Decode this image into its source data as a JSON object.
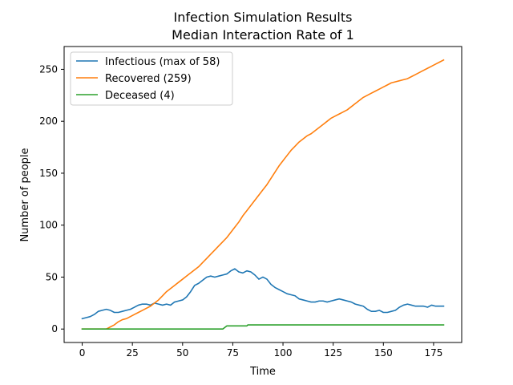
{
  "chart_data": {
    "type": "line",
    "title_lines": [
      "Infection Simulation Results",
      "Median Interaction Rate of 1"
    ],
    "xlabel": "Time",
    "ylabel": "Number of people",
    "xlim": [
      -9,
      189
    ],
    "ylim": [
      -12.95,
      271.95
    ],
    "xticks": [
      0,
      25,
      50,
      75,
      100,
      125,
      150,
      175
    ],
    "yticks": [
      0,
      50,
      100,
      150,
      200,
      250
    ],
    "grid": false,
    "legend_position": "top-left",
    "series": [
      {
        "name": "Infectious (max of 58)",
        "color": "#1f77b4",
        "points": [
          [
            0,
            10
          ],
          [
            2,
            11
          ],
          [
            4,
            12
          ],
          [
            6,
            14
          ],
          [
            8,
            17
          ],
          [
            10,
            18
          ],
          [
            12,
            19
          ],
          [
            14,
            18
          ],
          [
            16,
            16
          ],
          [
            18,
            16
          ],
          [
            20,
            17
          ],
          [
            22,
            18
          ],
          [
            24,
            19
          ],
          [
            26,
            21
          ],
          [
            28,
            23
          ],
          [
            30,
            24
          ],
          [
            32,
            24
          ],
          [
            34,
            23
          ],
          [
            36,
            25
          ],
          [
            38,
            24
          ],
          [
            40,
            23
          ],
          [
            42,
            24
          ],
          [
            44,
            23
          ],
          [
            46,
            26
          ],
          [
            48,
            27
          ],
          [
            50,
            28
          ],
          [
            52,
            31
          ],
          [
            54,
            36
          ],
          [
            56,
            42
          ],
          [
            58,
            44
          ],
          [
            60,
            47
          ],
          [
            62,
            50
          ],
          [
            64,
            51
          ],
          [
            66,
            50
          ],
          [
            68,
            51
          ],
          [
            70,
            52
          ],
          [
            72,
            53
          ],
          [
            74,
            56
          ],
          [
            76,
            58
          ],
          [
            78,
            55
          ],
          [
            80,
            54
          ],
          [
            82,
            56
          ],
          [
            84,
            55
          ],
          [
            86,
            52
          ],
          [
            88,
            48
          ],
          [
            90,
            50
          ],
          [
            92,
            48
          ],
          [
            94,
            43
          ],
          [
            96,
            40
          ],
          [
            98,
            38
          ],
          [
            100,
            36
          ],
          [
            102,
            34
          ],
          [
            104,
            33
          ],
          [
            106,
            32
          ],
          [
            108,
            29
          ],
          [
            110,
            28
          ],
          [
            112,
            27
          ],
          [
            114,
            26
          ],
          [
            116,
            26
          ],
          [
            118,
            27
          ],
          [
            120,
            27
          ],
          [
            122,
            26
          ],
          [
            124,
            27
          ],
          [
            126,
            28
          ],
          [
            128,
            29
          ],
          [
            130,
            28
          ],
          [
            132,
            27
          ],
          [
            134,
            26
          ],
          [
            136,
            24
          ],
          [
            138,
            23
          ],
          [
            140,
            22
          ],
          [
            142,
            19
          ],
          [
            144,
            17
          ],
          [
            146,
            17
          ],
          [
            148,
            18
          ],
          [
            150,
            16
          ],
          [
            152,
            16
          ],
          [
            154,
            17
          ],
          [
            156,
            18
          ],
          [
            158,
            21
          ],
          [
            160,
            23
          ],
          [
            162,
            24
          ],
          [
            164,
            23
          ],
          [
            166,
            22
          ],
          [
            168,
            22
          ],
          [
            170,
            22
          ],
          [
            172,
            21
          ],
          [
            174,
            23
          ],
          [
            176,
            22
          ],
          [
            178,
            22
          ],
          [
            180,
            22
          ]
        ]
      },
      {
        "name": "Recovered (259)",
        "color": "#ff7f0e",
        "points": [
          [
            0,
            0
          ],
          [
            12,
            0
          ],
          [
            14,
            2
          ],
          [
            16,
            4
          ],
          [
            18,
            7
          ],
          [
            20,
            9
          ],
          [
            22,
            10
          ],
          [
            24,
            12
          ],
          [
            26,
            14
          ],
          [
            28,
            16
          ],
          [
            30,
            18
          ],
          [
            32,
            20
          ],
          [
            34,
            22
          ],
          [
            36,
            25
          ],
          [
            38,
            28
          ],
          [
            40,
            32
          ],
          [
            42,
            36
          ],
          [
            44,
            39
          ],
          [
            46,
            42
          ],
          [
            48,
            45
          ],
          [
            50,
            48
          ],
          [
            52,
            51
          ],
          [
            54,
            54
          ],
          [
            56,
            57
          ],
          [
            58,
            60
          ],
          [
            60,
            64
          ],
          [
            62,
            68
          ],
          [
            64,
            72
          ],
          [
            66,
            76
          ],
          [
            68,
            80
          ],
          [
            70,
            84
          ],
          [
            72,
            88
          ],
          [
            74,
            93
          ],
          [
            76,
            98
          ],
          [
            78,
            103
          ],
          [
            80,
            109
          ],
          [
            82,
            114
          ],
          [
            84,
            119
          ],
          [
            86,
            124
          ],
          [
            88,
            129
          ],
          [
            90,
            134
          ],
          [
            92,
            139
          ],
          [
            94,
            145
          ],
          [
            96,
            151
          ],
          [
            98,
            157
          ],
          [
            100,
            162
          ],
          [
            102,
            167
          ],
          [
            104,
            172
          ],
          [
            106,
            176
          ],
          [
            108,
            180
          ],
          [
            110,
            183
          ],
          [
            112,
            186
          ],
          [
            114,
            188
          ],
          [
            116,
            191
          ],
          [
            118,
            194
          ],
          [
            120,
            197
          ],
          [
            122,
            200
          ],
          [
            124,
            203
          ],
          [
            126,
            205
          ],
          [
            128,
            207
          ],
          [
            130,
            209
          ],
          [
            132,
            211
          ],
          [
            134,
            214
          ],
          [
            136,
            217
          ],
          [
            138,
            220
          ],
          [
            140,
            223
          ],
          [
            142,
            225
          ],
          [
            144,
            227
          ],
          [
            146,
            229
          ],
          [
            148,
            231
          ],
          [
            150,
            233
          ],
          [
            152,
            235
          ],
          [
            154,
            237
          ],
          [
            156,
            238
          ],
          [
            158,
            239
          ],
          [
            160,
            240
          ],
          [
            162,
            241
          ],
          [
            164,
            243
          ],
          [
            166,
            245
          ],
          [
            168,
            247
          ],
          [
            170,
            249
          ],
          [
            172,
            251
          ],
          [
            174,
            253
          ],
          [
            176,
            255
          ],
          [
            178,
            257
          ],
          [
            180,
            259
          ]
        ]
      },
      {
        "name": "Deceased (4)",
        "color": "#2ca02c",
        "points": [
          [
            0,
            0
          ],
          [
            70,
            0
          ],
          [
            72,
            3
          ],
          [
            82,
            3
          ],
          [
            82.5,
            4
          ],
          [
            180,
            4
          ]
        ]
      }
    ]
  }
}
